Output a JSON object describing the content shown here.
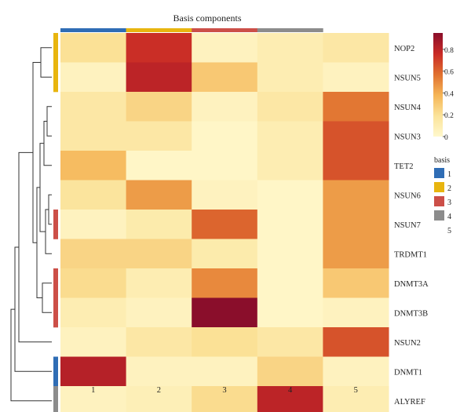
{
  "chart_data": {
    "type": "heatmap",
    "title": "Basis components",
    "rows": [
      "NOP2",
      "NSUN5",
      "NSUN4",
      "NSUN3",
      "TET2",
      "NSUN6",
      "NSUN7",
      "TRDMT1",
      "DNMT3A",
      "DNMT3B",
      "NSUN2",
      "DNMT1",
      "ALYREF"
    ],
    "columns": [
      "1",
      "2",
      "3",
      "4",
      "5"
    ],
    "values": [
      [
        0.2,
        0.75,
        0.05,
        0.1,
        0.15
      ],
      [
        0.05,
        0.8,
        0.3,
        0.1,
        0.05
      ],
      [
        0.15,
        0.25,
        0.05,
        0.15,
        0.55
      ],
      [
        0.15,
        0.15,
        0.02,
        0.1,
        0.65
      ],
      [
        0.35,
        0.02,
        0.02,
        0.1,
        0.65
      ],
      [
        0.18,
        0.45,
        0.05,
        0.02,
        0.45
      ],
      [
        0.05,
        0.12,
        0.6,
        0.02,
        0.45
      ],
      [
        0.25,
        0.25,
        0.12,
        0.02,
        0.45
      ],
      [
        0.22,
        0.1,
        0.5,
        0.02,
        0.3
      ],
      [
        0.1,
        0.05,
        0.95,
        0.02,
        0.05
      ],
      [
        0.05,
        0.15,
        0.2,
        0.15,
        0.65
      ],
      [
        0.82,
        0.05,
        0.05,
        0.25,
        0.05
      ],
      [
        0.05,
        0.08,
        0.22,
        0.8,
        0.1
      ]
    ],
    "color_scale": {
      "ticks": [
        "0.8",
        "0.6",
        "0.4",
        "0.2",
        "0"
      ],
      "tick_values": [
        0.8,
        0.6,
        0.4,
        0.2,
        0
      ],
      "range": [
        0,
        0.95
      ],
      "colors": [
        "#fff8cc",
        "#fbe39a",
        "#f5b556",
        "#e0702f",
        "#c92a26",
        "#8a0e2b"
      ]
    },
    "column_annotation": [
      "1",
      "2",
      "3",
      "4"
    ],
    "row_annotation": [
      "2",
      "2",
      "",
      "",
      "",
      "",
      "3",
      "",
      "3",
      "3",
      "",
      "1",
      "4"
    ],
    "basis_legend": {
      "title": "basis",
      "items": [
        {
          "label": "1",
          "color": "#2f6db5"
        },
        {
          "label": "2",
          "color": "#e8b50f"
        },
        {
          "label": "3",
          "color": "#cc4f48"
        },
        {
          "label": "4",
          "color": "#8c8c8c"
        },
        {
          "label": "5",
          "color": null
        }
      ]
    }
  }
}
